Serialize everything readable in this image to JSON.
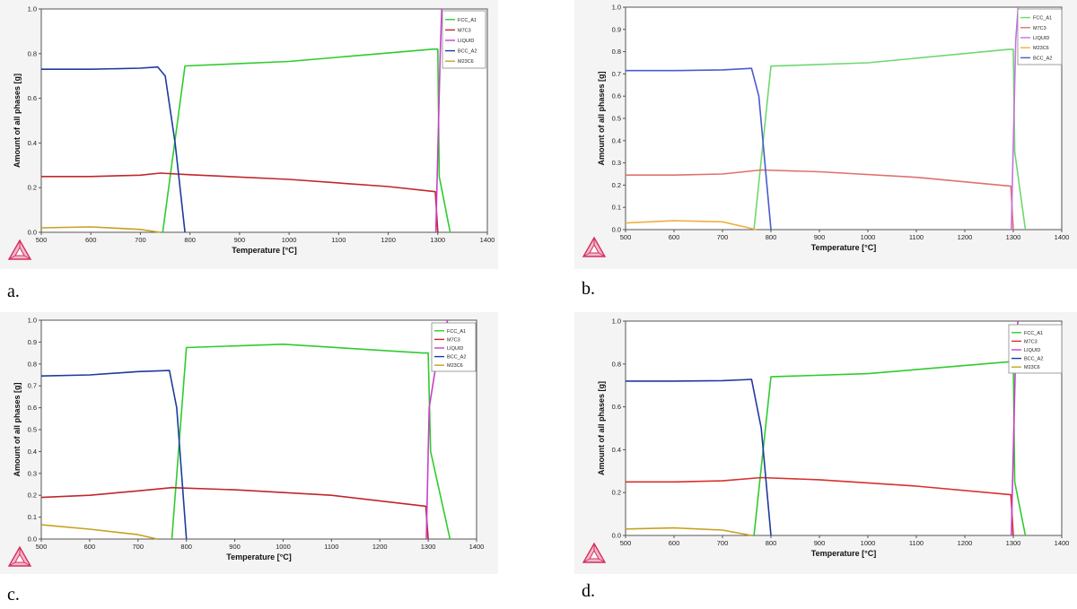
{
  "figure": {
    "panel_letters": [
      "a.",
      "b.",
      "c.",
      "d."
    ]
  },
  "chart_data": [
    {
      "panel": "a.",
      "type": "line",
      "xlabel": "Temperature [°C]",
      "ylabel": "Amount of all phases [g]",
      "xlim": [
        500,
        1400
      ],
      "ylim": [
        0,
        1
      ],
      "xticks": [
        "500",
        "600",
        "700",
        "800",
        "900",
        "1000",
        "1100",
        "1200",
        "1300",
        "1400"
      ],
      "yticks": [
        "0.0",
        "0.2",
        "0.4",
        "0.6",
        "0.8",
        "1.0"
      ],
      "legend": [
        "FCC_A1",
        "M7C3",
        "LIQUID",
        "BCC_A2",
        "M23C6"
      ],
      "series": [
        {
          "name": "FCC_A1",
          "color": "#2ecc2e",
          "points": [
            [
              745,
              0
            ],
            [
              790,
              0.745
            ],
            [
              1000,
              0.765
            ],
            [
              1290,
              0.82
            ],
            [
              1300,
              0.82
            ],
            [
              1303,
              0.25
            ],
            [
              1325,
              0
            ]
          ]
        },
        {
          "name": "M7C3",
          "color": "#c0262d",
          "points": [
            [
              500,
              0.25
            ],
            [
              600,
              0.25
            ],
            [
              700,
              0.256
            ],
            [
              740,
              0.265
            ],
            [
              800,
              0.258
            ],
            [
              1000,
              0.237
            ],
            [
              1200,
              0.205
            ],
            [
              1295,
              0.182
            ],
            [
              1300,
              0
            ]
          ]
        },
        {
          "name": "LIQUID",
          "color": "#c840c8",
          "points": [
            [
              1296,
              0
            ],
            [
              1305,
              0.8
            ],
            [
              1308,
              1.0
            ]
          ]
        },
        {
          "name": "BCC_A2",
          "color": "#1f3a9e",
          "points": [
            [
              500,
              0.73
            ],
            [
              600,
              0.73
            ],
            [
              700,
              0.735
            ],
            [
              735,
              0.74
            ],
            [
              750,
              0.7
            ],
            [
              770,
              0.4
            ],
            [
              790,
              0
            ]
          ]
        },
        {
          "name": "M23C6",
          "color": "#c8a020",
          "points": [
            [
              500,
              0.02
            ],
            [
              600,
              0.024
            ],
            [
              700,
              0.013
            ],
            [
              740,
              0
            ]
          ]
        }
      ]
    },
    {
      "panel": "b.",
      "type": "line",
      "xlabel": "Temperature [°C]",
      "ylabel": "Amount of all phases [g]",
      "xlim": [
        500,
        1400
      ],
      "ylim": [
        0,
        1
      ],
      "xticks": [
        "500",
        "600",
        "700",
        "800",
        "900",
        "1000",
        "1100",
        "1200",
        "1300",
        "1400"
      ],
      "yticks": [
        "0.0",
        "0.1",
        "0.2",
        "0.3",
        "0.4",
        "0.5",
        "0.6",
        "0.7",
        "0.8",
        "0.9",
        "1.0"
      ],
      "legend": [
        "FCC_A1",
        "M7C3",
        "LIQUID",
        "M23C6",
        "BCC_A2"
      ],
      "series": [
        {
          "name": "FCC_A1",
          "color": "#6fd86f",
          "points": [
            [
              765,
              0
            ],
            [
              800,
              0.735
            ],
            [
              1000,
              0.75
            ],
            [
              1290,
              0.81
            ],
            [
              1300,
              0.81
            ],
            [
              1303,
              0.35
            ],
            [
              1325,
              0
            ]
          ]
        },
        {
          "name": "M7C3",
          "color": "#e07070",
          "points": [
            [
              500,
              0.245
            ],
            [
              600,
              0.245
            ],
            [
              700,
              0.25
            ],
            [
              780,
              0.268
            ],
            [
              900,
              0.26
            ],
            [
              1100,
              0.235
            ],
            [
              1295,
              0.195
            ],
            [
              1300,
              0
            ]
          ]
        },
        {
          "name": "LIQUID",
          "color": "#c870e0",
          "points": [
            [
              1296,
              0
            ],
            [
              1305,
              0.85
            ],
            [
              1310,
              1.0
            ]
          ]
        },
        {
          "name": "M23C6",
          "color": "#f0b040",
          "points": [
            [
              500,
              0.03
            ],
            [
              600,
              0.04
            ],
            [
              700,
              0.035
            ],
            [
              770,
              0
            ]
          ]
        },
        {
          "name": "BCC_A2",
          "color": "#4a5ad0",
          "points": [
            [
              500,
              0.715
            ],
            [
              600,
              0.715
            ],
            [
              700,
              0.718
            ],
            [
              760,
              0.725
            ],
            [
              775,
              0.6
            ],
            [
              800,
              0
            ]
          ]
        }
      ]
    },
    {
      "panel": "c.",
      "type": "line",
      "xlabel": "Temperature [°C]",
      "ylabel": "Amount of all phases [g]",
      "xlim": [
        500,
        1400
      ],
      "ylim": [
        0,
        1
      ],
      "xticks": [
        "500",
        "600",
        "700",
        "800",
        "900",
        "1000",
        "1100",
        "1200",
        "1300",
        "1400"
      ],
      "yticks": [
        "0.0",
        "0.1",
        "0.2",
        "0.3",
        "0.4",
        "0.5",
        "0.6",
        "0.7",
        "0.8",
        "0.9",
        "1.0"
      ],
      "legend": [
        "FCC_A1",
        "M7C3",
        "LIQUID",
        "BCC_A2",
        "M23C6"
      ],
      "series": [
        {
          "name": "FCC_A1",
          "color": "#2ecc2e",
          "points": [
            [
              770,
              0
            ],
            [
              800,
              0.875
            ],
            [
              1000,
              0.89
            ],
            [
              1290,
              0.85
            ],
            [
              1300,
              0.85
            ],
            [
              1305,
              0.4
            ],
            [
              1345,
              0
            ]
          ]
        },
        {
          "name": "M7C3",
          "color": "#c0262d",
          "points": [
            [
              500,
              0.19
            ],
            [
              600,
              0.2
            ],
            [
              700,
              0.22
            ],
            [
              770,
              0.235
            ],
            [
              900,
              0.225
            ],
            [
              1100,
              0.2
            ],
            [
              1295,
              0.15
            ],
            [
              1300,
              0
            ]
          ]
        },
        {
          "name": "LIQUID",
          "color": "#c840c8",
          "points": [
            [
              1296,
              0
            ],
            [
              1302,
              0.6
            ],
            [
              1320,
              0.85
            ],
            [
              1340,
              1.0
            ]
          ]
        },
        {
          "name": "BCC_A2",
          "color": "#1f3a9e",
          "points": [
            [
              500,
              0.745
            ],
            [
              600,
              0.75
            ],
            [
              700,
              0.765
            ],
            [
              765,
              0.77
            ],
            [
              780,
              0.6
            ],
            [
              800,
              0
            ]
          ]
        },
        {
          "name": "M23C6",
          "color": "#c8a020",
          "points": [
            [
              500,
              0.065
            ],
            [
              600,
              0.045
            ],
            [
              700,
              0.02
            ],
            [
              740,
              0
            ]
          ]
        }
      ]
    },
    {
      "panel": "d.",
      "type": "line",
      "xlabel": "Temperature [°C]",
      "ylabel": "Amount of all phases [g]",
      "xlim": [
        500,
        1400
      ],
      "ylim": [
        0,
        1
      ],
      "xticks": [
        "500",
        "600",
        "700",
        "800",
        "900",
        "1000",
        "1100",
        "1200",
        "1300",
        "1400"
      ],
      "yticks": [
        "0.0",
        "0.2",
        "0.4",
        "0.6",
        "0.8",
        "1.0"
      ],
      "legend": [
        "FCC_A1",
        "M7C3",
        "LIQUID",
        "BCC_A2",
        "M23C6"
      ],
      "series": [
        {
          "name": "FCC_A1",
          "color": "#2ecc2e",
          "points": [
            [
              765,
              0
            ],
            [
              800,
              0.74
            ],
            [
              1000,
              0.755
            ],
            [
              1290,
              0.81
            ],
            [
              1300,
              0.81
            ],
            [
              1303,
              0.25
            ],
            [
              1325,
              0
            ]
          ]
        },
        {
          "name": "M7C3",
          "color": "#d8302d",
          "points": [
            [
              500,
              0.25
            ],
            [
              600,
              0.25
            ],
            [
              700,
              0.255
            ],
            [
              780,
              0.27
            ],
            [
              900,
              0.26
            ],
            [
              1100,
              0.23
            ],
            [
              1295,
              0.19
            ],
            [
              1300,
              0
            ]
          ]
        },
        {
          "name": "LIQUID",
          "color": "#c840c8",
          "points": [
            [
              1296,
              0
            ],
            [
              1306,
              0.95
            ],
            [
              1310,
              1.0
            ]
          ]
        },
        {
          "name": "BCC_A2",
          "color": "#1f3a9e",
          "points": [
            [
              500,
              0.72
            ],
            [
              600,
              0.72
            ],
            [
              700,
              0.722
            ],
            [
              760,
              0.728
            ],
            [
              780,
              0.5
            ],
            [
              800,
              0
            ]
          ]
        },
        {
          "name": "M23C6",
          "color": "#c8a020",
          "points": [
            [
              500,
              0.03
            ],
            [
              600,
              0.035
            ],
            [
              700,
              0.025
            ],
            [
              760,
              0
            ]
          ]
        }
      ]
    }
  ]
}
